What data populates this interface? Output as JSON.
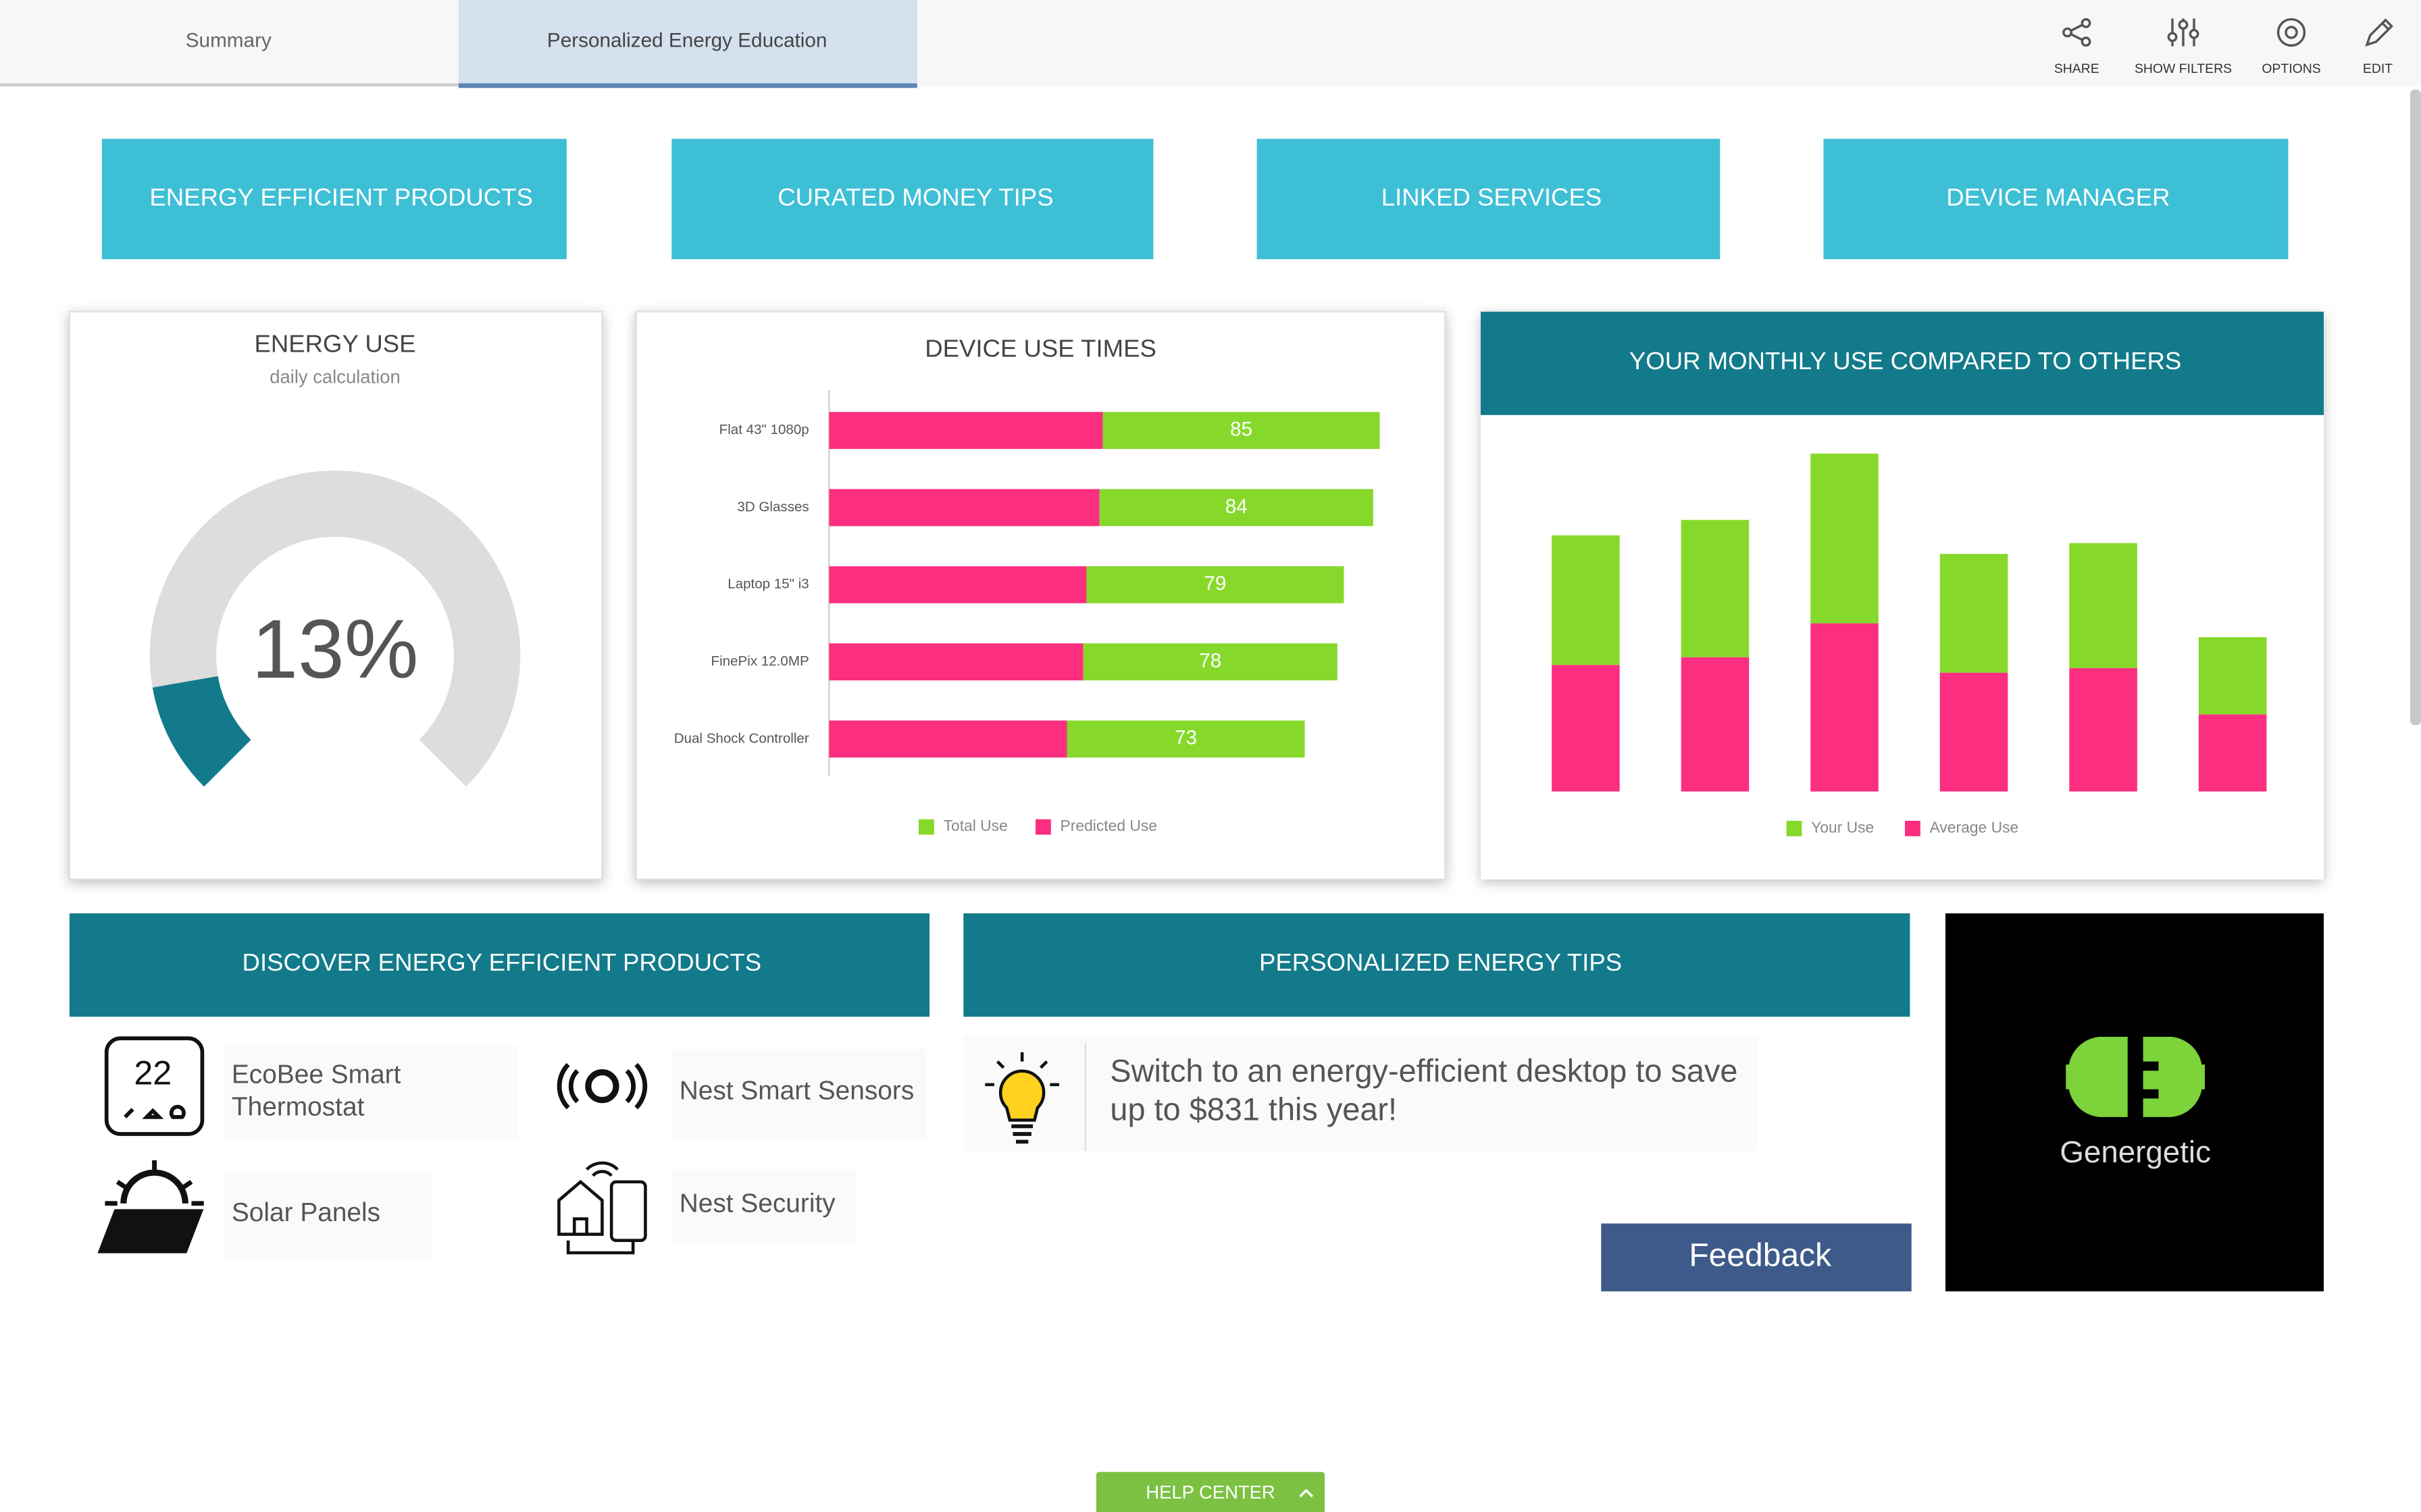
{
  "tabs": [
    "Summary",
    "Personalized Energy Education"
  ],
  "toolbar": [
    "SHARE",
    "SHOW FILTERS",
    "OPTIONS",
    "EDIT"
  ],
  "nav_buttons": [
    "ENERGY EFFICIENT PRODUCTS",
    "CURATED MONEY TIPS",
    "LINKED SERVICES",
    "DEVICE MANAGER"
  ],
  "energy_use": {
    "type": "gauge",
    "title": "ENERGY USE",
    "subtitle": "daily calculation",
    "value": 13,
    "value_label": "13%",
    "color": "#127a8a"
  },
  "device_use_times": {
    "type": "bar",
    "orientation": "horizontal",
    "stacked": true,
    "title": "DEVICE USE TIMES",
    "categories": [
      "Flat 43\" 1080p",
      "3D Glasses",
      "Laptop 15\" i3",
      "FinePix 12.0MP",
      "Dual Shock Controller"
    ],
    "series": [
      {
        "name": "Total Use",
        "color": "#86d92a",
        "values": [
          85,
          84,
          79,
          78,
          73
        ]
      },
      {
        "name": "Predicted Use",
        "color": "#fc2e80",
        "values": [
          84,
          83,
          79,
          78,
          73
        ]
      }
    ]
  },
  "monthly_use": {
    "type": "bar",
    "stacked": true,
    "title": "YOUR MONTHLY USE COMPARED TO OTHERS",
    "series": [
      {
        "name": "Your Use",
        "color": "#86d92a",
        "values": [
          84,
          89,
          110,
          77,
          81,
          50
        ]
      },
      {
        "name": "Average Use",
        "color": "#fc2e80",
        "values": [
          82,
          87,
          109,
          77,
          80,
          50
        ]
      }
    ]
  },
  "products": {
    "title": "DISCOVER ENERGY EFFICIENT PRODUCTS",
    "items": [
      "EcoBee Smart Thermostat",
      "Nest Smart Sensors",
      "Solar Panels",
      "Nest Security"
    ]
  },
  "tips": {
    "title": "PERSONALIZED ENERGY TIPS",
    "text": "Switch to an energy-efficient desktop to save up to $831 this year!",
    "button": "Feedback"
  },
  "brand": "Genergetic",
  "help": "HELP CENTER"
}
